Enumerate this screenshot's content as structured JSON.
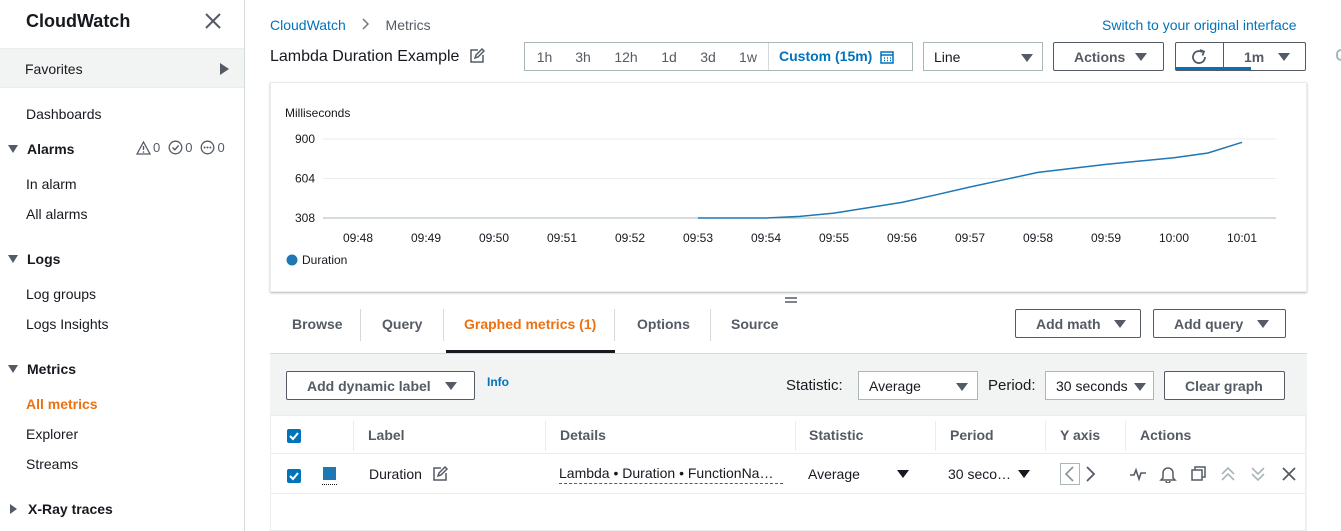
{
  "sidebar": {
    "title": "CloudWatch",
    "favorites": "Favorites",
    "dashboards": "Dashboards",
    "alarms": {
      "label": "Alarms",
      "counts": [
        "0",
        "0",
        "0"
      ],
      "in_alarm": "In alarm",
      "all_alarms": "All alarms"
    },
    "logs": {
      "label": "Logs",
      "log_groups": "Log groups",
      "logs_insights": "Logs Insights"
    },
    "metrics": {
      "label": "Metrics",
      "all_metrics": "All metrics",
      "explorer": "Explorer",
      "streams": "Streams"
    },
    "xray": "X-Ray traces"
  },
  "header": {
    "breadcrumb": [
      "CloudWatch",
      "Metrics"
    ],
    "switch_link": "Switch to your original interface",
    "title": "Lambda Duration Example"
  },
  "toolbar": {
    "ranges": [
      "1h",
      "3h",
      "12h",
      "1d",
      "3d",
      "1w"
    ],
    "custom": "Custom (15m)",
    "chart_type": "Line",
    "actions": "Actions",
    "refresh_interval": "1m"
  },
  "chart_data": {
    "type": "line",
    "ylabel": "Milliseconds",
    "y_ticks": [
      308,
      604,
      900
    ],
    "x": [
      "09:48",
      "09:49",
      "09:50",
      "09:51",
      "09:52",
      "09:53",
      "09:54",
      "09:55",
      "09:56",
      "09:57",
      "09:58",
      "09:59",
      "10:00",
      "10:01"
    ],
    "series": [
      {
        "name": "Duration",
        "color": "#1f77b4",
        "x": [
          5,
          5.5,
          6,
          6.5,
          7,
          7.5,
          8,
          8.5,
          9,
          9.5,
          10,
          10.5,
          11,
          11.5,
          12,
          12.5,
          13
        ],
        "values": [
          308,
          308,
          308,
          320,
          345,
          385,
          425,
          482,
          540,
          595,
          650,
          680,
          710,
          735,
          760,
          795,
          875
        ]
      }
    ],
    "legend": [
      "Duration"
    ]
  },
  "tabs": {
    "items": [
      "Browse",
      "Query",
      "Graphed metrics (1)",
      "Options",
      "Source"
    ],
    "add_math": "Add math",
    "add_query": "Add query"
  },
  "controls": {
    "dynamic_label": "Add dynamic label",
    "info": "Info",
    "statistic_label": "Statistic:",
    "statistic_value": "Average",
    "period_label": "Period:",
    "period_value": "30 seconds",
    "clear_graph": "Clear graph"
  },
  "table": {
    "headers": [
      "Label",
      "Details",
      "Statistic",
      "Period",
      "Y axis",
      "Actions"
    ],
    "rows": [
      {
        "label": "Duration",
        "details": "Lambda • Duration • FunctionName: my-function",
        "statistic": "Average",
        "period": "30 seco…"
      }
    ]
  }
}
